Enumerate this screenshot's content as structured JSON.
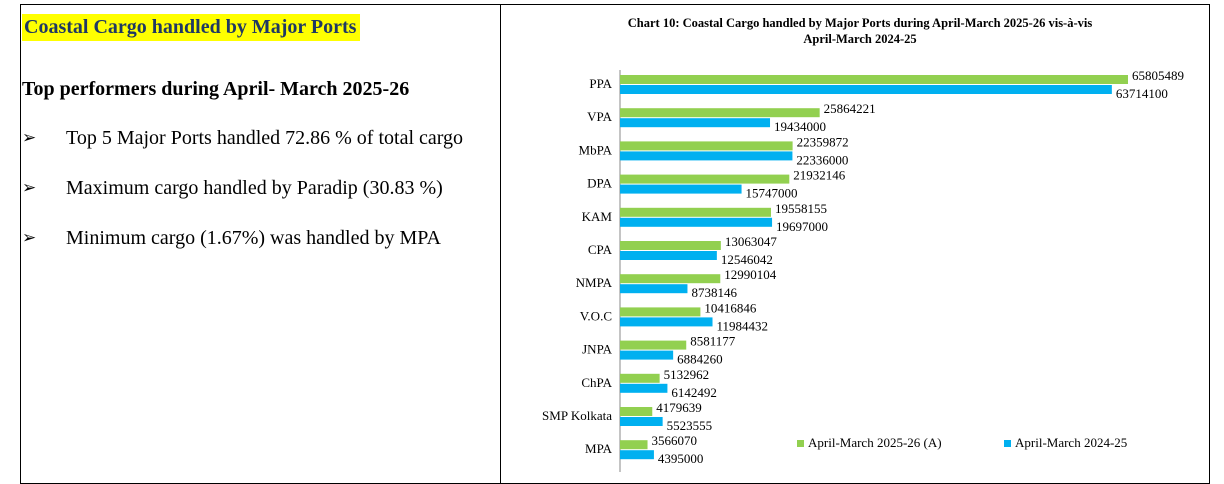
{
  "panel": {
    "title": "Coastal Cargo handled by Major Ports",
    "heading": "Top performers during April- March 2025-26",
    "bullets": [
      "Top 5 Major Ports handled 72.86 % of total cargo",
      "Maximum cargo handled by Paradip (30.83 %)",
      "Minimum cargo (1.67%) was handled by MPA"
    ]
  },
  "chart_data": {
    "type": "hbar",
    "title": "Chart 10: Coastal Cargo handled by Major Ports during April-March 2025-26 vis-à-vis April-March 2024-25",
    "categories": [
      "PPA",
      "VPA",
      "MbPA",
      "DPA",
      "KAM",
      "CPA",
      "NMPA",
      "V.O.C",
      "JNPA",
      "ChPA",
      "SMP Kolkata",
      "MPA"
    ],
    "series": [
      {
        "name": "April-March 2025-26 (A)",
        "color": "#92d050",
        "values": [
          65805489,
          25864221,
          22359872,
          21932146,
          19558155,
          13063047,
          12990104,
          10416846,
          8581177,
          5132962,
          4179639,
          3566070
        ]
      },
      {
        "name": "April-March 2024-25",
        "color": "#00b0f0",
        "values": [
          63714100,
          19434000,
          22336000,
          15747000,
          19697000,
          12546042,
          8738146,
          11984432,
          6884260,
          6142492,
          5523555,
          4395000
        ]
      }
    ],
    "legend": "lower right"
  }
}
